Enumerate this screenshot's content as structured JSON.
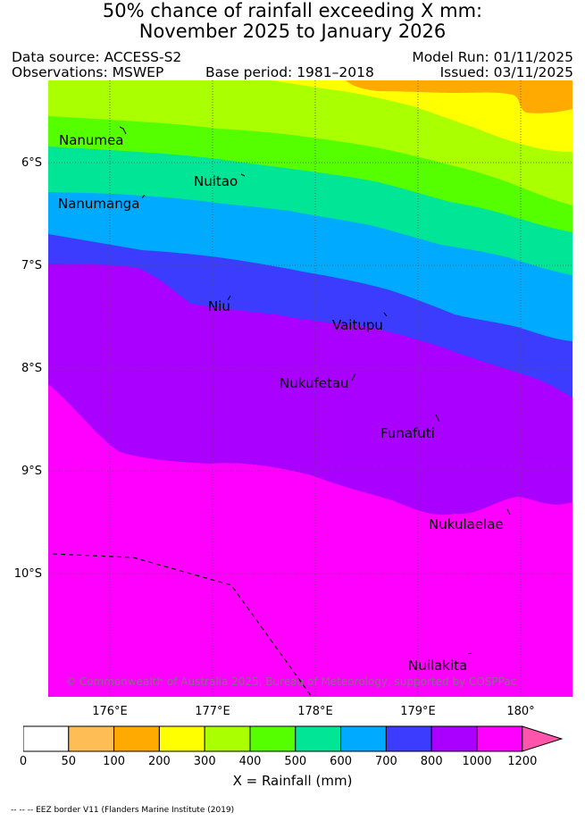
{
  "header": {
    "title_line1": "50% chance of rainfall exceeding X mm:",
    "title_line2": "November 2025 to January 2026",
    "data_source": "Data source: ACCESS-S2",
    "observations": "Observations: MSWEP",
    "base_period": "Base period: 1981–2018",
    "model_run": "Model Run: 01/11/2025",
    "issued": "Issued: 03/11/2025"
  },
  "axes": {
    "lat_labels": [
      "6°S",
      "7°S",
      "8°S",
      "9°S",
      "10°S"
    ],
    "lon_labels": [
      "176°E",
      "177°E",
      "178°E",
      "179°E",
      "180°"
    ]
  },
  "places": [
    {
      "name": "Nanumea"
    },
    {
      "name": "Nuitao"
    },
    {
      "name": "Nanumanga"
    },
    {
      "name": "Niu"
    },
    {
      "name": "Vaitupu"
    },
    {
      "name": "Nukufetau"
    },
    {
      "name": "Funafuti"
    },
    {
      "name": "Nukulaelae"
    },
    {
      "name": "Nuilakita"
    }
  ],
  "copyright": "© Commonwealth of Australia 2025, Bureau of Meteorology, supported by COSPPac",
  "legend": {
    "label": "X = Rainfall (mm)",
    "ticks": [
      "0",
      "50",
      "100",
      "200",
      "300",
      "400",
      "500",
      "600",
      "700",
      "800",
      "1000",
      "1200"
    ],
    "colors": [
      "#ffffff",
      "#ffbe55",
      "#ffaa00",
      "#ffff00",
      "#aaff00",
      "#55ff00",
      "#00e696",
      "#00aaff",
      "#3c3cff",
      "#aa00ff",
      "#ff00ff"
    ],
    "extend_color": "#ff55aa"
  },
  "footnote": "-- -- -- EEZ border V11 (Flanders Marine Institute (2019)"
}
